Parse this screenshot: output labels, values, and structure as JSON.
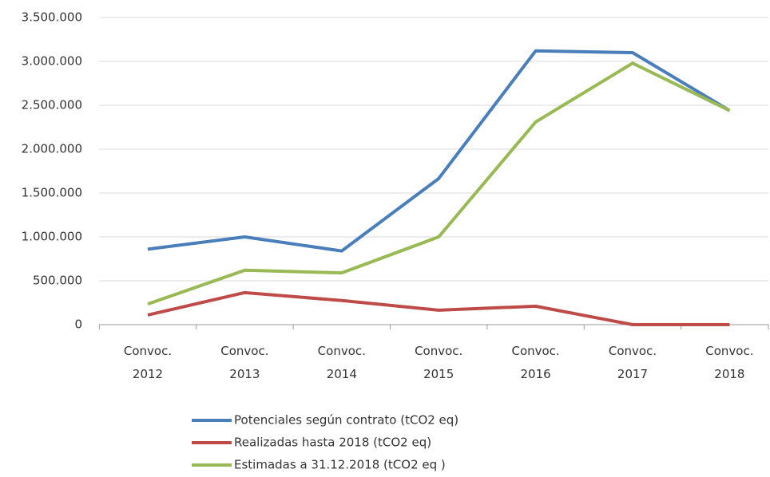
{
  "chart_data": {
    "type": "line",
    "categories": [
      "Convoc. 2012",
      "Convoc. 2013",
      "Convoc. 2014",
      "Convoc. 2015",
      "Convoc. 2016",
      "Convoc. 2017",
      "Convoc. 2018"
    ],
    "series": [
      {
        "name": "Potenciales según contrato (tCO2 eq)",
        "color": "#4a7ebb",
        "values": [
          860000,
          1000000,
          840000,
          1665000,
          3120000,
          3100000,
          2440000
        ]
      },
      {
        "name": "Realizadas hasta 2018 (tCO2 eq)",
        "color": "#be4b48",
        "values": [
          110000,
          365000,
          275000,
          165000,
          210000,
          0,
          0
        ]
      },
      {
        "name": "Estimadas a 31.12.2018 (tCO2 eq )",
        "color": "#98b954",
        "values": [
          235000,
          620000,
          590000,
          1000000,
          2310000,
          2980000,
          2440000
        ]
      }
    ],
    "ylim": [
      0,
      3500000
    ],
    "yticks": [
      0,
      {
        "value": 500000,
        "label": "500.000"
      },
      {
        "value": 1000000,
        "label": "1.000.000"
      },
      {
        "value": 1500000,
        "label": "1.500.000"
      },
      {
        "value": 2000000,
        "label": "2.000.000"
      },
      {
        "value": 2500000,
        "label": "2.500.000"
      },
      {
        "value": 3000000,
        "label": "3.000.000"
      },
      {
        "value": 3500000,
        "label": "3.500.000"
      }
    ],
    "grid": true,
    "legend": "bottom"
  }
}
